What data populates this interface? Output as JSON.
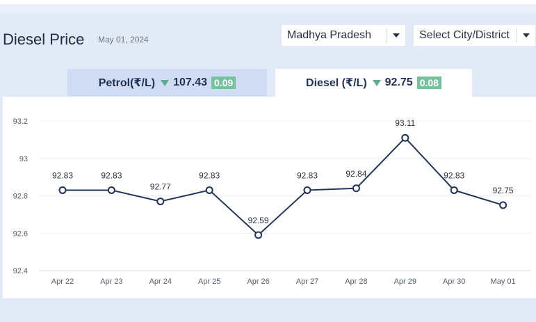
{
  "header": {
    "title": "Diesel Price",
    "date": "May 01, 2024"
  },
  "filters": {
    "state": "Madhya Pradesh",
    "city": "Select City/District"
  },
  "tabs": {
    "petrol": {
      "label": "Petrol(₹/L)",
      "price": "107.43",
      "change": "0.09"
    },
    "diesel": {
      "label": "Diesel (₹/L)",
      "price": "92.75",
      "change": "0.08"
    }
  },
  "colors": {
    "line": "#1f3458",
    "badge": "#74c39d",
    "down_arrow": "#5fae8b",
    "active_tab": "#ffffff",
    "inactive_tab": "#cfdcf3"
  },
  "chart_data": {
    "type": "line",
    "title": "",
    "xlabel": "",
    "ylabel": "",
    "categories": [
      "Apr 22",
      "Apr 23",
      "Apr 24",
      "Apr 25",
      "Apr 26",
      "Apr 27",
      "Apr 28",
      "Apr 29",
      "Apr 30",
      "May 01"
    ],
    "values": [
      92.83,
      92.83,
      92.77,
      92.83,
      92.59,
      92.83,
      92.84,
      93.11,
      92.83,
      92.75
    ],
    "data_labels": [
      "92.83",
      "92.83",
      "92.77",
      "92.83",
      "92.59",
      "92.83",
      "92.84",
      "93.11",
      "92.83",
      "92.75"
    ],
    "ylim": [
      92.4,
      93.2
    ],
    "yticks": [
      92.4,
      92.6,
      92.8,
      93,
      93.2
    ],
    "ytick_labels": [
      "92.4",
      "92.6",
      "92.8",
      "93",
      "93.2"
    ],
    "grid": true,
    "legend": "none"
  }
}
